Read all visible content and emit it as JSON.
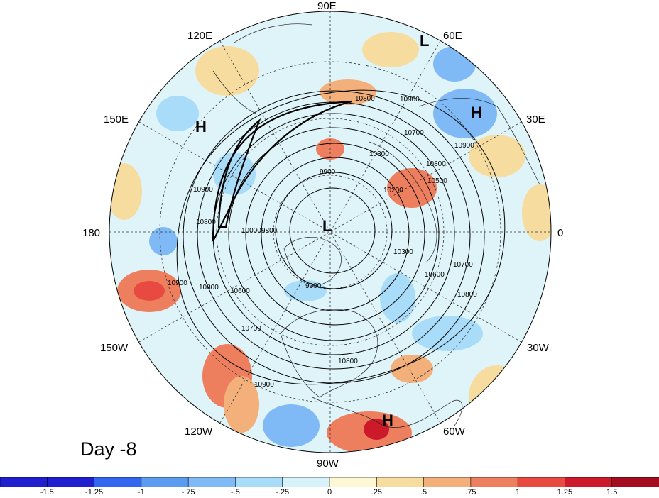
{
  "lon_labels": {
    "e90": "90E",
    "e120": "120E",
    "e60": "60E",
    "e150": "150E",
    "e30": "30E",
    "lon180": "180",
    "lon0": "0",
    "w150": "150W",
    "w30": "30W",
    "w120": "120W",
    "w60": "60W",
    "w90": "90W"
  },
  "pressure_centers": {
    "h_asia": "H",
    "h_europe": "H",
    "l_north": "L",
    "l_pole": "L",
    "h_south": "H"
  },
  "contour_labels": {
    "c1": "10800",
    "c2": "10900",
    "c3": "10700",
    "c4": "10300",
    "c5": "10800",
    "c6": "10500",
    "c7": "10900",
    "c8": "9900",
    "c9": "10200",
    "c10": "10900",
    "c11": "10800",
    "c12": "10000",
    "c13": "9800",
    "c14": "10300",
    "c15": "10600",
    "c16": "10700",
    "c17": "10900",
    "c18": "10800",
    "c19": "10600",
    "c20": "10800",
    "c21": "9900",
    "c22": "10700",
    "c23": "10800",
    "c24": "10900"
  },
  "day_label": "Day -8",
  "colorbar": {
    "ticks": [
      "-1.5",
      "-1.25",
      "-1",
      "-.75",
      "-.5",
      "-.25",
      "0",
      ".25",
      ".5",
      ".75",
      "1",
      "1.25",
      "1.5"
    ],
    "colors": [
      "#1f1fd0",
      "#3366ee",
      "#5c9cf0",
      "#7fbaf6",
      "#a9dcf8",
      "#d6f3fb",
      "#fdf7d4",
      "#f7dca0",
      "#f3b07a",
      "#ee7f5e",
      "#e84a42",
      "#cc1a2a",
      "#a30d1f"
    ]
  }
}
